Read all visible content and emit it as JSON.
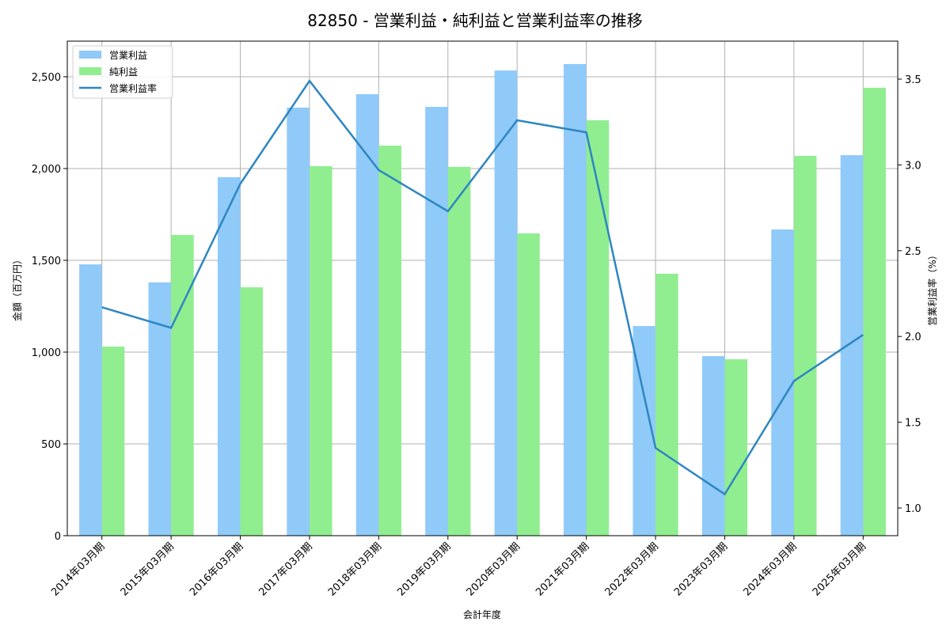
{
  "chart_data": {
    "type": "bar",
    "title": "82850 - 営業利益・純利益と営業利益率の推移",
    "xlabel": "会計年度",
    "ylabel": "金額（百万円）",
    "y2label": "営業利益率（%）",
    "categories": [
      "2014年03月期",
      "2015年03月期",
      "2016年03月期",
      "2017年03月期",
      "2018年03月期",
      "2019年03月期",
      "2020年03月期",
      "2021年03月期",
      "2022年03月期",
      "2023年03月期",
      "2024年03月期",
      "2025年03月期"
    ],
    "series": [
      {
        "name": "営業利益",
        "type": "bar",
        "axis": "left",
        "color": "#90CAF9",
        "values": [
          1478,
          1380,
          1953,
          2332,
          2405,
          2336,
          2534,
          2569,
          1142,
          978,
          1668,
          2073
        ]
      },
      {
        "name": "純利益",
        "type": "bar",
        "axis": "left",
        "color": "#90EE90",
        "values": [
          1030,
          1638,
          1353,
          2013,
          2125,
          2009,
          1647,
          2263,
          1427,
          961,
          2069,
          2440
        ]
      },
      {
        "name": "営業利益率",
        "type": "line",
        "axis": "right",
        "color": "#2E86C1",
        "values": [
          2.17,
          2.05,
          2.89,
          3.49,
          2.97,
          2.73,
          3.26,
          3.19,
          1.35,
          1.08,
          1.74,
          2.01
        ]
      }
    ],
    "ylim": [
      0,
      2700
    ],
    "yticks": [
      0,
      500,
      1000,
      1500,
      2000,
      2500
    ],
    "ytick_labels": [
      "0",
      "500",
      "1,000",
      "1,500",
      "2,000",
      "2,500"
    ],
    "y2lim": [
      0.83,
      3.72
    ],
    "y2ticks": [
      1.0,
      1.5,
      2.0,
      2.5,
      3.0,
      3.5
    ],
    "y2tick_labels": [
      "1.0",
      "1.5",
      "2.0",
      "2.5",
      "3.0",
      "3.5"
    ],
    "grid": true,
    "legend_position": "upper left"
  }
}
